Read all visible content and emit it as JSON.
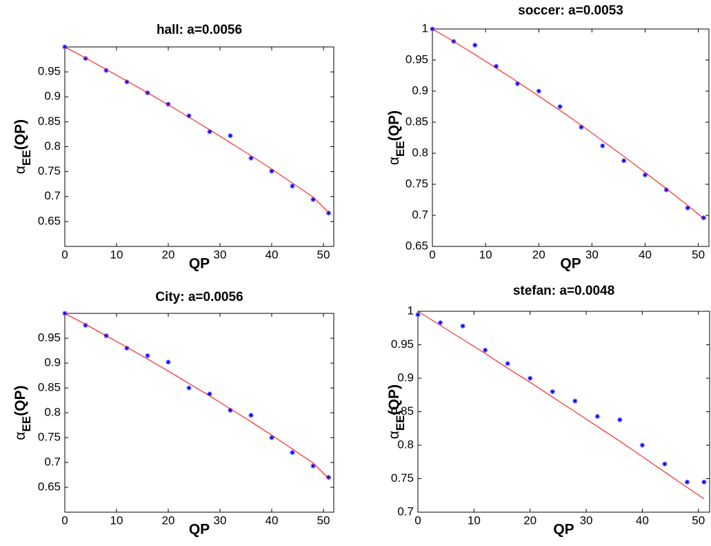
{
  "chart_data": [
    {
      "type": "scatter",
      "title": "hall: a=0.0056",
      "xlabel": "QP",
      "ylabel": [
        "α",
        "EE",
        "(QP)"
      ],
      "x": [
        0,
        4,
        8,
        12,
        16,
        20,
        24,
        28,
        32,
        36,
        40,
        44,
        48,
        51
      ],
      "series": [
        {
          "mode": "markers",
          "color": "#0000ff",
          "values": [
            1.0,
            0.977,
            0.953,
            0.93,
            0.908,
            0.885,
            0.862,
            0.83,
            0.822,
            0.777,
            0.751,
            0.721,
            0.694,
            0.667
          ]
        },
        {
          "mode": "line",
          "color": "#ff0000",
          "values": [
            1.0,
            0.978,
            0.955,
            0.932,
            0.908,
            0.884,
            0.859,
            0.834,
            0.808,
            0.782,
            0.755,
            0.727,
            0.699,
            0.668
          ]
        }
      ],
      "xlim": [
        0,
        52
      ],
      "xticks": [
        0,
        10,
        20,
        30,
        40,
        50
      ],
      "ylim": [
        0.6,
        1.0
      ],
      "yticks": [
        0.65,
        0.7,
        0.75,
        0.8,
        0.85,
        0.9,
        0.95
      ]
    },
    {
      "type": "scatter",
      "title": "soccer: a=0.0053",
      "xlabel": "QP",
      "ylabel": [
        "α",
        "EE",
        "(QP)"
      ],
      "x": [
        0,
        4,
        8,
        12,
        16,
        20,
        24,
        28,
        32,
        36,
        40,
        44,
        48,
        51
      ],
      "series": [
        {
          "mode": "markers",
          "color": "#0000ff",
          "values": [
            1.0,
            0.98,
            0.974,
            0.94,
            0.912,
            0.9,
            0.875,
            0.842,
            0.812,
            0.788,
            0.765,
            0.741,
            0.712,
            0.696
          ]
        },
        {
          "mode": "line",
          "color": "#ff0000",
          "values": [
            1.0,
            0.98,
            0.959,
            0.937,
            0.915,
            0.892,
            0.869,
            0.845,
            0.82,
            0.795,
            0.769,
            0.743,
            0.716,
            0.695
          ]
        }
      ],
      "xlim": [
        0,
        52
      ],
      "xticks": [
        0,
        10,
        20,
        30,
        40,
        50
      ],
      "ylim": [
        0.65,
        1.0
      ],
      "yticks": [
        0.65,
        0.7,
        0.75,
        0.8,
        0.85,
        0.9,
        0.95,
        1
      ]
    },
    {
      "type": "scatter",
      "title": "City: a=0.0056",
      "xlabel": "QP",
      "ylabel": [
        "α",
        "EE",
        "(QP)"
      ],
      "x": [
        0,
        4,
        8,
        12,
        16,
        20,
        24,
        28,
        32,
        36,
        40,
        44,
        48,
        51
      ],
      "series": [
        {
          "mode": "markers",
          "color": "#0000ff",
          "values": [
            1.0,
            0.976,
            0.955,
            0.93,
            0.915,
            0.902,
            0.85,
            0.838,
            0.805,
            0.795,
            0.75,
            0.72,
            0.693,
            0.67
          ]
        },
        {
          "mode": "line",
          "color": "#ff0000",
          "values": [
            1.0,
            0.978,
            0.955,
            0.932,
            0.908,
            0.884,
            0.859,
            0.834,
            0.808,
            0.782,
            0.755,
            0.727,
            0.699,
            0.668
          ]
        }
      ],
      "xlim": [
        0,
        52
      ],
      "xticks": [
        0,
        10,
        20,
        30,
        40,
        50
      ],
      "ylim": [
        0.6,
        1.0
      ],
      "yticks": [
        0.65,
        0.7,
        0.75,
        0.8,
        0.85,
        0.9,
        0.95
      ]
    },
    {
      "type": "scatter",
      "title": "stefan: a=0.0048",
      "xlabel": "QP",
      "ylabel": [
        "α",
        "EE",
        "(QP)"
      ],
      "x": [
        0,
        4,
        8,
        12,
        16,
        20,
        24,
        28,
        32,
        36,
        40,
        44,
        48,
        51
      ],
      "series": [
        {
          "mode": "markers",
          "color": "#0000ff",
          "values": [
            0.995,
            0.983,
            0.978,
            0.942,
            0.922,
            0.9,
            0.88,
            0.866,
            0.843,
            0.838,
            0.8,
            0.772,
            0.745,
            0.745
          ]
        },
        {
          "mode": "line",
          "color": "#ff0000",
          "values": [
            1.0,
            0.979,
            0.958,
            0.937,
            0.915,
            0.894,
            0.872,
            0.85,
            0.828,
            0.806,
            0.783,
            0.76,
            0.737,
            0.72
          ]
        }
      ],
      "xlim": [
        0,
        52
      ],
      "xticks": [
        0,
        10,
        20,
        30,
        40,
        50
      ],
      "ylim": [
        0.7,
        1.0
      ],
      "yticks": [
        0.7,
        0.75,
        0.8,
        0.85,
        0.9,
        0.95,
        1
      ]
    }
  ]
}
